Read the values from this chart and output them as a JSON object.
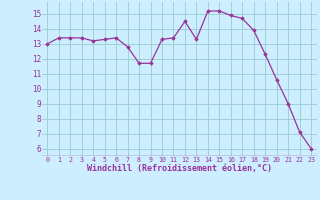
{
  "x": [
    0,
    1,
    2,
    3,
    4,
    5,
    6,
    7,
    8,
    9,
    10,
    11,
    12,
    13,
    14,
    15,
    16,
    17,
    18,
    19,
    20,
    21,
    22,
    23
  ],
  "y": [
    13.0,
    13.4,
    13.4,
    13.4,
    13.2,
    13.3,
    13.4,
    12.8,
    11.7,
    11.7,
    13.3,
    13.4,
    14.5,
    13.3,
    15.2,
    15.2,
    14.9,
    14.7,
    13.9,
    12.3,
    10.6,
    9.0,
    7.1,
    6.0
  ],
  "line_color": "#993399",
  "marker": "D",
  "markersize": 1.8,
  "linewidth": 0.9,
  "bg_color": "#cceeff",
  "grid_color": "#99cccc",
  "xlabel": "Windchill (Refroidissement éolien,°C)",
  "xlabel_color": "#993399",
  "tick_color": "#993399",
  "ylabel_ticks": [
    6,
    7,
    8,
    9,
    10,
    11,
    12,
    13,
    14,
    15
  ],
  "xlim": [
    -0.5,
    23.5
  ],
  "ylim": [
    5.5,
    15.8
  ],
  "divider_color": "#993399"
}
